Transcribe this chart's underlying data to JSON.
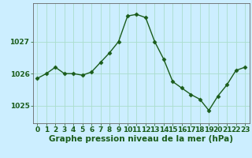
{
  "x": [
    0,
    1,
    2,
    3,
    4,
    5,
    6,
    7,
    8,
    9,
    10,
    11,
    12,
    13,
    14,
    15,
    16,
    17,
    18,
    19,
    20,
    21,
    22,
    23
  ],
  "y": [
    1025.85,
    1026.0,
    1026.2,
    1026.0,
    1026.0,
    1025.95,
    1026.05,
    1026.35,
    1026.65,
    1027.0,
    1027.8,
    1027.85,
    1027.75,
    1027.0,
    1026.45,
    1025.75,
    1025.55,
    1025.35,
    1025.2,
    1024.85,
    1025.3,
    1025.65,
    1026.1,
    1026.2
  ],
  "line_color": "#1a5c1a",
  "marker": "D",
  "markersize": 2.5,
  "linewidth": 1.0,
  "background_color": "#cceeff",
  "grid_color": "#aaddcc",
  "ylabel_ticks": [
    1025,
    1026,
    1027
  ],
  "xlabel_label": "Graphe pression niveau de la mer (hPa)",
  "xlabel_fontsize": 7.5,
  "ylim": [
    1024.45,
    1028.2
  ],
  "xlim": [
    -0.5,
    23.5
  ],
  "tick_fontsize": 6.5
}
